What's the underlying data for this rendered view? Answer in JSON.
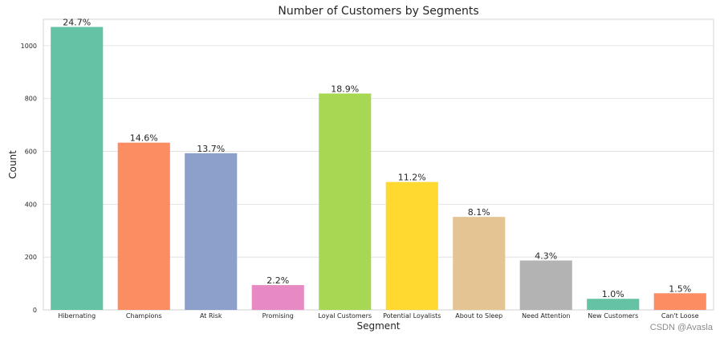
{
  "chart_data": {
    "type": "bar",
    "title": "Number of Customers by Segments",
    "xlabel": "Segment",
    "ylabel": "Count",
    "ylim": [
      0,
      1100
    ],
    "yticks": [
      0,
      200,
      400,
      600,
      800,
      1000
    ],
    "grid": true,
    "categories": [
      "Hibernating",
      "Champions",
      "At Risk",
      "Promising",
      "Loyal Customers",
      "Potential Loyalists",
      "About to Sleep",
      "Need Attention",
      "New Customers",
      "Can't Loose"
    ],
    "values": [
      1071,
      633,
      593,
      94,
      819,
      484,
      352,
      187,
      42,
      63
    ],
    "data_labels": [
      "24.7%",
      "14.6%",
      "13.7%",
      "2.2%",
      "18.9%",
      "11.2%",
      "8.1%",
      "4.3%",
      "1.0%",
      "1.5%"
    ],
    "colors": [
      "#66c2a5",
      "#fc8d62",
      "#8da0cb",
      "#e78ac3",
      "#a6d854",
      "#ffd92f",
      "#e5c494",
      "#b3b3b3",
      "#66c2a5",
      "#fc8d62"
    ]
  },
  "watermark": "CSDN @Avasla"
}
